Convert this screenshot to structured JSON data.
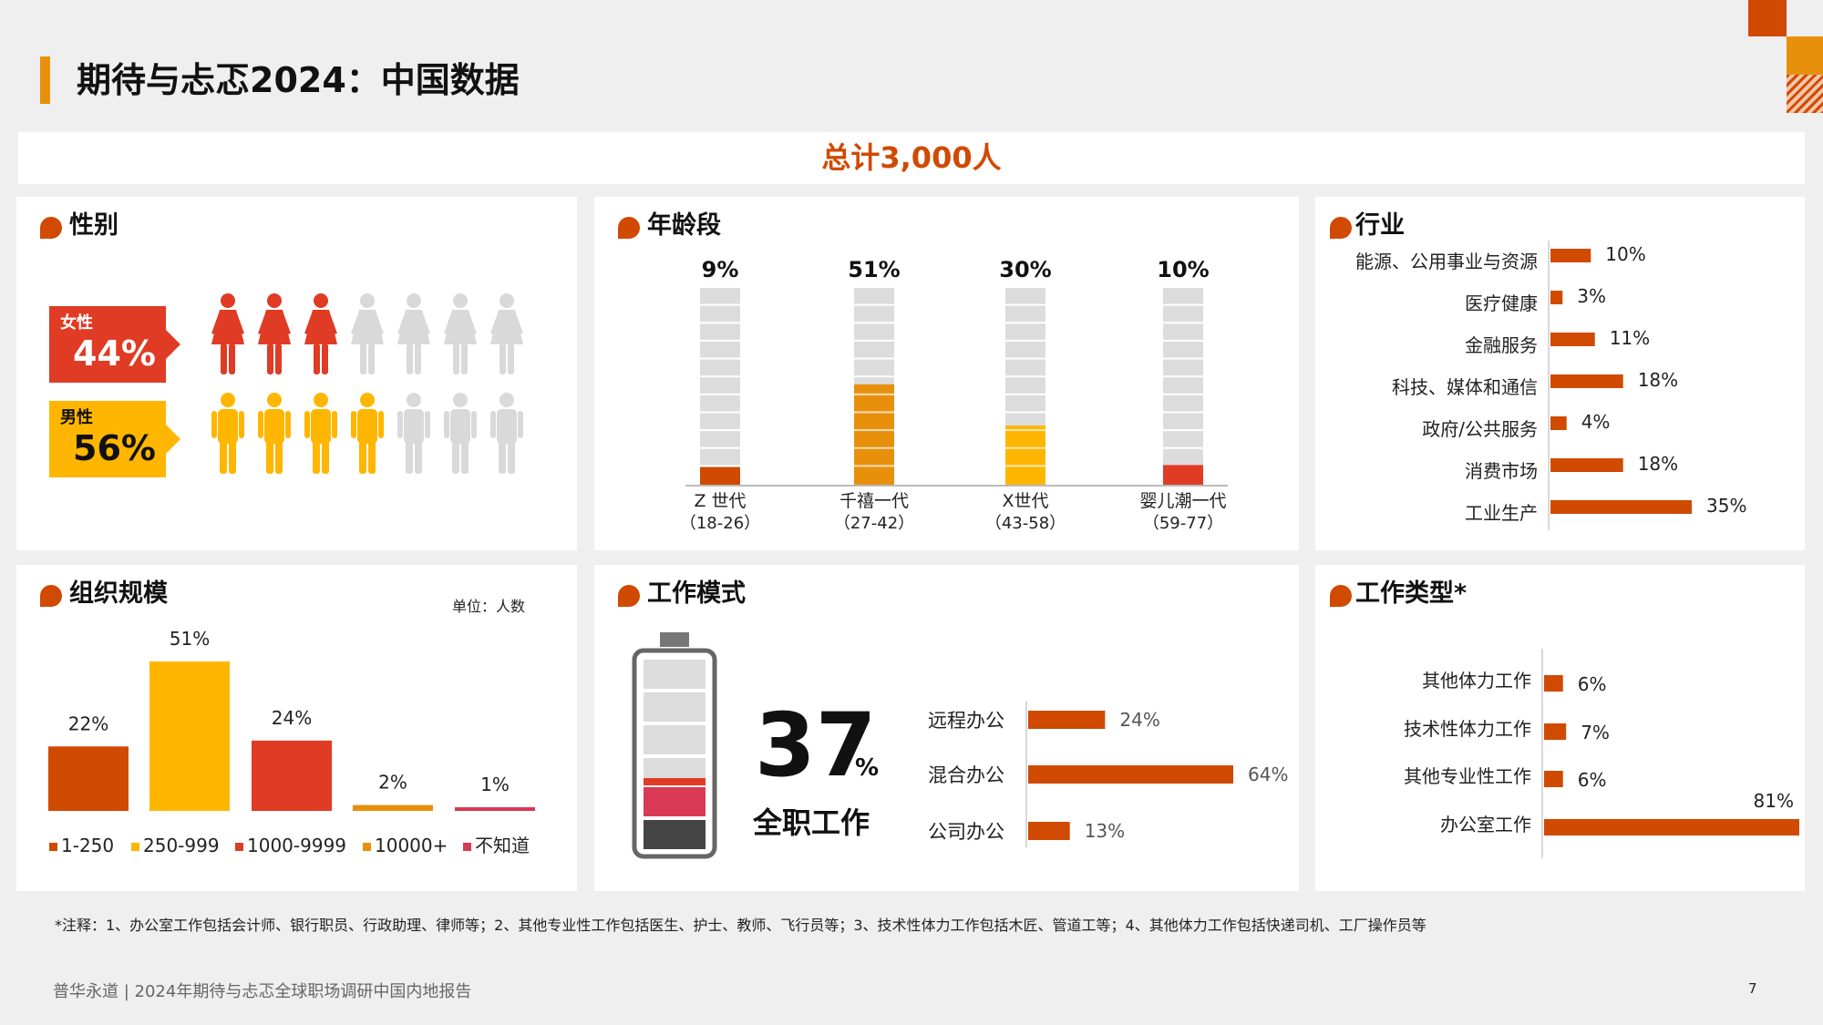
{
  "header": {
    "title": "期待与忐忑2024：中国数据"
  },
  "total": "总计3,000人",
  "gender": {
    "title": "性别",
    "female": {
      "label": "女性",
      "pct": "44%",
      "color": "#e03b24"
    },
    "male": {
      "label": "男性",
      "pct": "56%",
      "color": "#ffb600"
    }
  },
  "age": {
    "title": "年龄段",
    "groups": [
      {
        "name": "Z 世代",
        "range": "（18-26）",
        "pct": "9%",
        "value": 9,
        "color": "#d04a02"
      },
      {
        "name": "千禧一代",
        "range": "（27-42）",
        "pct": "51%",
        "value": 51,
        "color": "#e8900c"
      },
      {
        "name": "X世代",
        "range": "（43-58）",
        "pct": "30%",
        "value": 30,
        "color": "#ffb600"
      },
      {
        "name": "婴儿潮一代",
        "range": "（59-77）",
        "pct": "10%",
        "value": 10,
        "color": "#e03b24"
      }
    ]
  },
  "industry": {
    "title": "行业",
    "items": [
      {
        "label": "能源、公用事业与资源",
        "pct": "10%",
        "value": 10
      },
      {
        "label": "医疗健康",
        "pct": "3%",
        "value": 3
      },
      {
        "label": "金融服务",
        "pct": "11%",
        "value": 11
      },
      {
        "label": "科技、媒体和通信",
        "pct": "18%",
        "value": 18
      },
      {
        "label": "政府/公共服务",
        "pct": "4%",
        "value": 4
      },
      {
        "label": "消费市场",
        "pct": "18%",
        "value": 18
      },
      {
        "label": "工业生产",
        "pct": "35%",
        "value": 35
      }
    ]
  },
  "org": {
    "title": "组织规模",
    "unit": "单位：人数",
    "items": [
      {
        "label": "1-250",
        "pct": "22%",
        "value": 22,
        "color": "#d04a02"
      },
      {
        "label": "250-999",
        "pct": "51%",
        "value": 51,
        "color": "#ffb600"
      },
      {
        "label": "1000-9999",
        "pct": "24%",
        "value": 24,
        "color": "#e03b24"
      },
      {
        "label": "10000+",
        "pct": "2%",
        "value": 2,
        "color": "#e8900c"
      },
      {
        "label": "不知道",
        "pct": "1%",
        "value": 1,
        "color": "#d93954"
      }
    ]
  },
  "workmode": {
    "title": "工作模式",
    "big_number": "37",
    "big_unit": "%",
    "big_caption": "全职工作",
    "items": [
      {
        "label": "远程办公",
        "pct": "24%",
        "value": 24
      },
      {
        "label": "混合办公",
        "pct": "64%",
        "value": 64
      },
      {
        "label": "公司办公",
        "pct": "13%",
        "value": 13
      }
    ]
  },
  "worktype": {
    "title": "工作类型*",
    "items": [
      {
        "label": "其他体力工作",
        "pct": "6%",
        "value": 6
      },
      {
        "label": "技术性体力工作",
        "pct": "7%",
        "value": 7
      },
      {
        "label": "其他专业性工作",
        "pct": "6%",
        "value": 6
      },
      {
        "label": "办公室工作",
        "pct": "81%",
        "value": 81
      }
    ]
  },
  "note": "*注释：1、办公室工作包括会计师、银行职员、行政助理、律师等；2、其他专业性工作包括医生、护士、教师、飞行员等；3、技术性体力工作包括木匠、管道工等；4、其他体力工作包括快递司机、工厂操作员等",
  "footer": "普华永道 | 2024年期待与忐忑全球职场调研中国内地报告",
  "page_number": "7",
  "chart_data": [
    {
      "type": "bar",
      "title": "年龄段",
      "categories": [
        "Z 世代（18-26）",
        "千禧一代（27-42）",
        "X世代（43-58）",
        "婴儿潮一代（59-77）"
      ],
      "values": [
        9,
        51,
        30,
        10
      ]
    },
    {
      "type": "bar",
      "title": "行业",
      "categories": [
        "能源、公用事业与资源",
        "医疗健康",
        "金融服务",
        "科技、媒体和通信",
        "政府/公共服务",
        "消费市场",
        "工业生产"
      ],
      "values": [
        10,
        3,
        11,
        18,
        4,
        18,
        35
      ]
    },
    {
      "type": "bar",
      "title": "组织规模",
      "categories": [
        "1-250",
        "250-999",
        "1000-9999",
        "10000+",
        "不知道"
      ],
      "values": [
        22,
        51,
        24,
        2,
        1
      ]
    },
    {
      "type": "bar",
      "title": "工作模式",
      "categories": [
        "远程办公",
        "混合办公",
        "公司办公"
      ],
      "values": [
        24,
        64,
        13
      ]
    },
    {
      "type": "bar",
      "title": "工作类型*",
      "categories": [
        "其他体力工作",
        "技术性体力工作",
        "其他专业性工作",
        "办公室工作"
      ],
      "values": [
        6,
        7,
        6,
        81
      ]
    },
    {
      "type": "bar",
      "title": "性别",
      "categories": [
        "女性",
        "男性"
      ],
      "values": [
        44,
        56
      ]
    }
  ]
}
